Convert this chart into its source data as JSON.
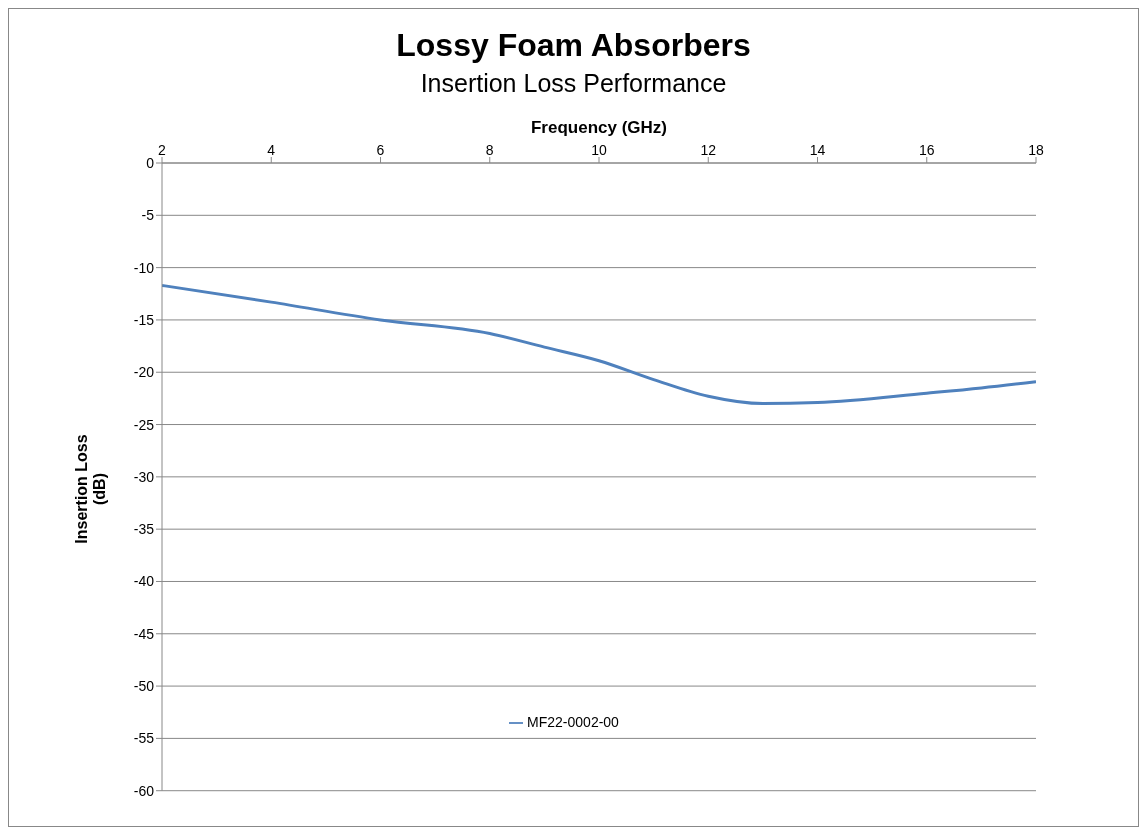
{
  "chart_data": {
    "type": "line",
    "title": "Lossy Foam Absorbers",
    "subtitle": "Insertion Loss Performance",
    "xlabel": "Frequency (GHz)",
    "ylabel": "Insertion Loss (dB)",
    "x": [
      2,
      4,
      6,
      8,
      9,
      10,
      11,
      12,
      13,
      14,
      16,
      17,
      18
    ],
    "series": [
      {
        "name": "MF22-0002-00",
        "color": "#4f81bd",
        "values": [
          -11.7,
          -13.3,
          -15.0,
          -16.3,
          -17.6,
          -18.9,
          -20.7,
          -22.3,
          -23.0,
          -22.9,
          -22.0,
          -21.5,
          -20.9
        ]
      }
    ],
    "xlim": [
      2,
      18
    ],
    "xticks": [
      2,
      4,
      6,
      8,
      10,
      12,
      14,
      16,
      18
    ],
    "ylim": [
      -60,
      0
    ],
    "yticks": [
      -60,
      -55,
      -50,
      -45,
      -40,
      -35,
      -30,
      -25,
      -20,
      -15,
      -10,
      -5,
      0
    ],
    "grid": "y",
    "legend": "bottom",
    "marker": "none",
    "line_style": "solid"
  }
}
